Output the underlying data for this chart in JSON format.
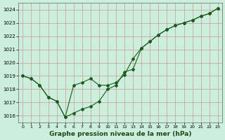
{
  "background_color": "#cceedd",
  "grid_color": "#cc9999",
  "line_color": "#1a5c1a",
  "marker_color": "#1a5c1a",
  "title": "Graphe pression niveau de la mer (hPa)",
  "xlabel_color": "#1a4a1a",
  "xlim": [
    -0.5,
    23.5
  ],
  "ylim": [
    1015.5,
    1024.5
  ],
  "yticks": [
    1016,
    1017,
    1018,
    1019,
    1020,
    1021,
    1022,
    1023,
    1024
  ],
  "xticks": [
    0,
    1,
    2,
    3,
    4,
    5,
    6,
    7,
    8,
    9,
    10,
    11,
    12,
    13,
    14,
    15,
    16,
    17,
    18,
    19,
    20,
    21,
    22,
    23
  ],
  "series1_x": [
    0,
    1,
    2,
    3,
    4,
    5,
    6,
    7,
    8,
    9,
    10,
    11,
    12,
    13,
    14,
    15,
    16,
    17,
    18,
    19,
    20,
    21,
    22,
    23
  ],
  "series1_y": [
    1019.0,
    1018.8,
    1018.3,
    1017.4,
    1017.1,
    1015.9,
    1016.2,
    1016.5,
    1016.7,
    1017.1,
    1018.0,
    1018.3,
    1019.3,
    1019.5,
    1021.1,
    1021.6,
    1022.1,
    1022.5,
    1022.8,
    1023.0,
    1023.2,
    1023.5,
    1023.7,
    1024.1
  ],
  "series2_x": [
    0,
    1,
    2,
    3,
    4,
    5,
    6,
    7,
    8,
    9,
    10,
    11,
    12,
    13,
    14,
    15,
    16,
    17,
    18,
    19,
    20,
    21,
    22,
    23
  ],
  "series2_y": [
    1019.0,
    1018.8,
    1018.3,
    1017.4,
    1017.1,
    1015.9,
    1018.3,
    1018.5,
    1018.8,
    1018.3,
    1018.3,
    1018.5,
    1019.1,
    1020.3,
    1021.1,
    1021.6,
    1022.1,
    1022.5,
    1022.8,
    1023.0,
    1023.2,
    1023.5,
    1023.7,
    1024.1
  ]
}
